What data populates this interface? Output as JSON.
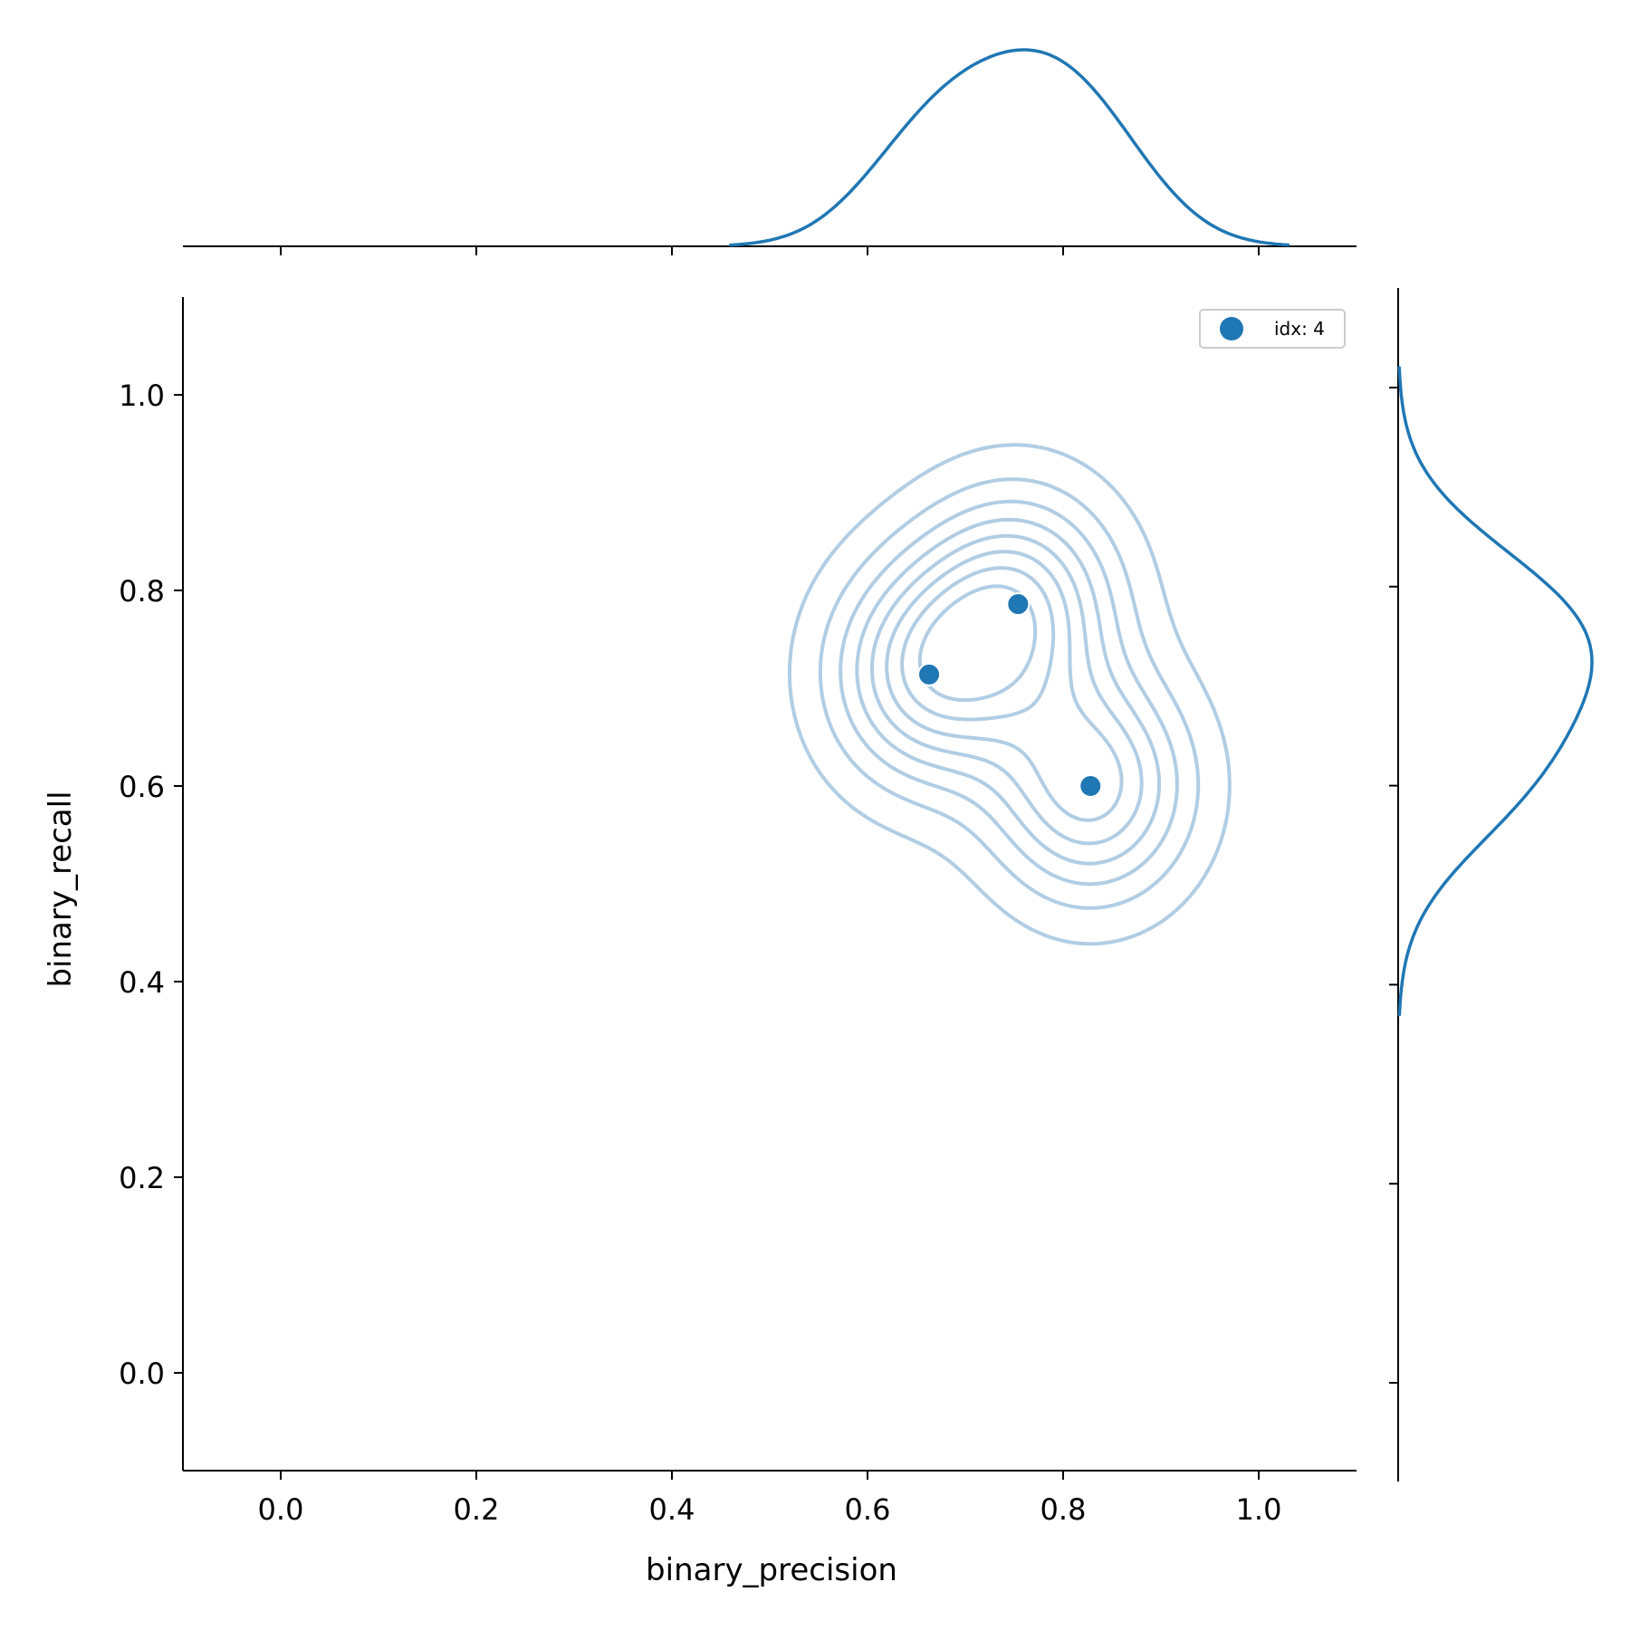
{
  "chart_data": {
    "type": "scatter",
    "subtype": "jointplot-kde",
    "xlabel": "binary_precision",
    "ylabel": "binary_recall",
    "xlim": [
      -0.1,
      1.1
    ],
    "ylim": [
      -0.1,
      1.1
    ],
    "xticks": [
      "0.0",
      "0.2",
      "0.4",
      "0.6",
      "0.8",
      "1.0"
    ],
    "yticks": [
      "0.0",
      "0.2",
      "0.4",
      "0.6",
      "0.8",
      "1.0"
    ],
    "legend": {
      "placement": "upper-right",
      "entries": [
        "idx: 4"
      ]
    },
    "series": [
      {
        "name": "idx: 4",
        "points": [
          {
            "x": 0.663,
            "y": 0.714
          },
          {
            "x": 0.754,
            "y": 0.786
          },
          {
            "x": 0.828,
            "y": 0.6
          }
        ]
      }
    ],
    "contour_levels": 8,
    "marginal_x_range": [
      0.46,
      1.03
    ],
    "marginal_y_range": [
      0.37,
      1.02
    ],
    "colors": {
      "series": "#1f77b4",
      "contour": "#b0cde4"
    }
  }
}
